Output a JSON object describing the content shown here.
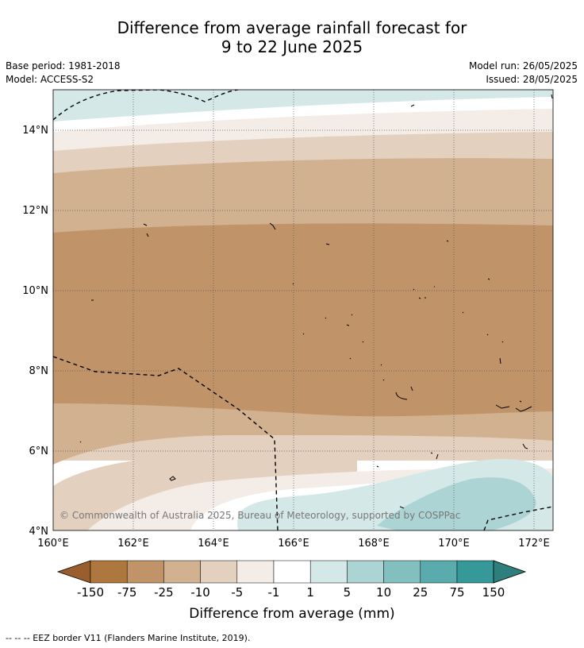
{
  "title": {
    "line1": "Difference from average rainfall forecast for",
    "line2": "9 to 22 June 2025"
  },
  "meta": {
    "base_period": "Base period: 1981-2018",
    "model": "Model: ACCESS-S2",
    "model_run": "Model run: 26/05/2025",
    "issued": "Issued: 28/05/2025"
  },
  "map": {
    "lon_labels": [
      "160°E",
      "162°E",
      "164°E",
      "166°E",
      "168°E",
      "170°E",
      "172°E"
    ],
    "lat_labels": [
      "4°N",
      "6°N",
      "8°N",
      "10°N",
      "12°N",
      "14°N"
    ],
    "copyright": "© Commonwealth of Australia 2025, Bureau of Meteorology, supported by COSPPac"
  },
  "colorbar": {
    "ticks": [
      "-150",
      "-75",
      "-25",
      "-10",
      "-5",
      "-1",
      "1",
      "5",
      "10",
      "25",
      "75",
      "150"
    ],
    "colors": [
      "#9a5e2e",
      "#ae773e",
      "#c09468",
      "#d2b190",
      "#e4d0bf",
      "#f4ece7",
      "#ffffff",
      "#d4e8e8",
      "#acd4d4",
      "#82c0c0",
      "#5aacac",
      "#35999a",
      "#2e7e7c"
    ],
    "label": "Difference from average (mm)"
  },
  "footer": "--  --  -- EEZ border V11 (Flanders Marine Institute, 2019)."
}
